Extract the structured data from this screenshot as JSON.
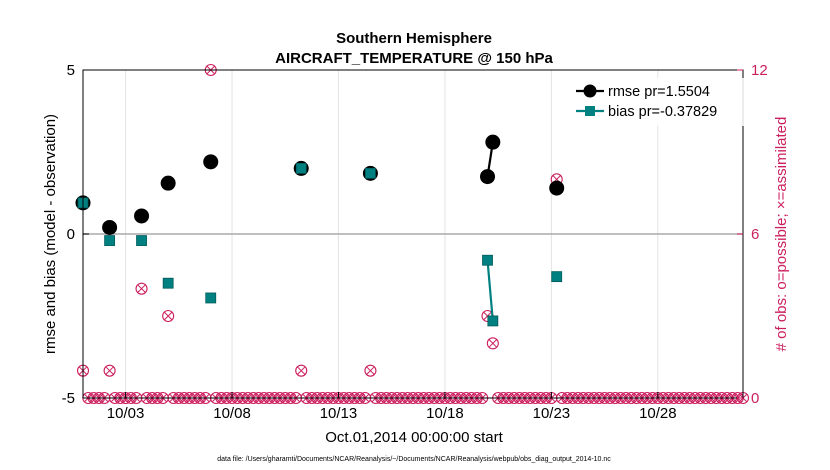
{
  "chart_data": {
    "type": "line",
    "title": "Southern Hemisphere",
    "subtitle": "AIRCRAFT_TEMPERATURE @ 150 hPa",
    "xlabel": "Oct.01,2014 00:00:00 start",
    "ylabel": "rmse and bias (model - observation)",
    "y2label": "# of obs: o=possible; ×=assimilated",
    "footnote": "data file: /Users/gharamti/Documents/NCAR/Reanalysis/~/Documents/NCAR/Reanalysis/webpub/obs_diag_output_2014-10.nc",
    "xlim": [
      1,
      32
    ],
    "ylim": [
      -5,
      5
    ],
    "y2lim": [
      0,
      12
    ],
    "yticks": [
      -5,
      0,
      5
    ],
    "y2ticks": [
      0,
      6,
      12
    ],
    "xticks": [
      {
        "x": 3,
        "label": "10/03"
      },
      {
        "x": 8,
        "label": "10/08"
      },
      {
        "x": 13,
        "label": "10/13"
      },
      {
        "x": 18,
        "label": "10/18"
      },
      {
        "x": 23,
        "label": "10/23"
      },
      {
        "x": 28,
        "label": "10/28"
      }
    ],
    "grid": true,
    "zero_line": true,
    "legend_position": "top-right",
    "series": [
      {
        "name": "rmse pr=1.5504",
        "axis": "left",
        "color": "#000000",
        "marker": "circle",
        "points": [
          {
            "x": 1.0,
            "y": 0.95
          },
          {
            "x": 2.25,
            "y": 0.2
          },
          {
            "x": 3.75,
            "y": 0.55
          },
          {
            "x": 5.0,
            "y": 1.55
          },
          {
            "x": 7.0,
            "y": 2.2
          },
          {
            "x": 11.25,
            "y": 2.0
          },
          {
            "x": 14.5,
            "y": 1.85
          },
          {
            "x": 20.0,
            "y": 1.75
          },
          {
            "x": 20.25,
            "y": 2.8
          },
          {
            "x": 23.25,
            "y": 1.4
          }
        ]
      },
      {
        "name": "bias pr=-0.37829",
        "axis": "left",
        "color": "#008080",
        "marker": "square",
        "points": [
          {
            "x": 1.0,
            "y": 0.95
          },
          {
            "x": 2.25,
            "y": -0.2
          },
          {
            "x": 3.75,
            "y": -0.2
          },
          {
            "x": 5.0,
            "y": -1.5
          },
          {
            "x": 7.0,
            "y": -1.95
          },
          {
            "x": 11.25,
            "y": 2.0
          },
          {
            "x": 14.5,
            "y": 1.85
          },
          {
            "x": 20.0,
            "y": -0.8
          },
          {
            "x": 20.25,
            "y": -2.65
          },
          {
            "x": 23.25,
            "y": -1.3
          }
        ]
      }
    ],
    "obs_count": {
      "axis": "right",
      "color": "#cc1f5e",
      "marker": "circle-with-x",
      "points": [
        {
          "x": 1.0,
          "y": 1
        },
        {
          "x": 2.25,
          "y": 1
        },
        {
          "x": 3.75,
          "y": 4
        },
        {
          "x": 5.0,
          "y": 3
        },
        {
          "x": 7.0,
          "y": 12
        },
        {
          "x": 11.25,
          "y": 1
        },
        {
          "x": 14.5,
          "y": 1
        },
        {
          "x": 20.0,
          "y": 3
        },
        {
          "x": 20.25,
          "y": 2
        },
        {
          "x": 23.25,
          "y": 8
        }
      ]
    }
  }
}
